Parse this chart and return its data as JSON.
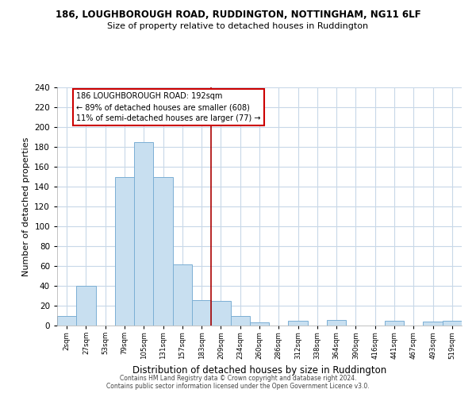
{
  "title": "186, LOUGHBOROUGH ROAD, RUDDINGTON, NOTTINGHAM, NG11 6LF",
  "subtitle": "Size of property relative to detached houses in Ruddington",
  "xlabel": "Distribution of detached houses by size in Ruddington",
  "ylabel": "Number of detached properties",
  "bar_labels": [
    "2sqm",
    "27sqm",
    "53sqm",
    "79sqm",
    "105sqm",
    "131sqm",
    "157sqm",
    "183sqm",
    "209sqm",
    "234sqm",
    "260sqm",
    "286sqm",
    "312sqm",
    "338sqm",
    "364sqm",
    "390sqm",
    "416sqm",
    "441sqm",
    "467sqm",
    "493sqm",
    "519sqm"
  ],
  "bar_heights": [
    10,
    40,
    0,
    150,
    185,
    150,
    62,
    26,
    25,
    10,
    3,
    0,
    5,
    0,
    6,
    0,
    0,
    5,
    0,
    4,
    5
  ],
  "bar_color": "#c8dff0",
  "bar_edge_color": "#7bafd4",
  "reference_line_color": "#aa0000",
  "annotation_line1": "186 LOUGHBOROUGH ROAD: 192sqm",
  "annotation_line2": "← 89% of detached houses are smaller (608)",
  "annotation_line3": "11% of semi-detached houses are larger (77) →",
  "annotation_box_edge_color": "#cc0000",
  "ylim": [
    0,
    240
  ],
  "yticks": [
    0,
    20,
    40,
    60,
    80,
    100,
    120,
    140,
    160,
    180,
    200,
    220,
    240
  ],
  "footer_line1": "Contains HM Land Registry data © Crown copyright and database right 2024.",
  "footer_line2": "Contains public sector information licensed under the Open Government Licence v3.0.",
  "bg_color": "#ffffff",
  "plot_bg_color": "#ffffff",
  "grid_color": "#c8d8e8"
}
